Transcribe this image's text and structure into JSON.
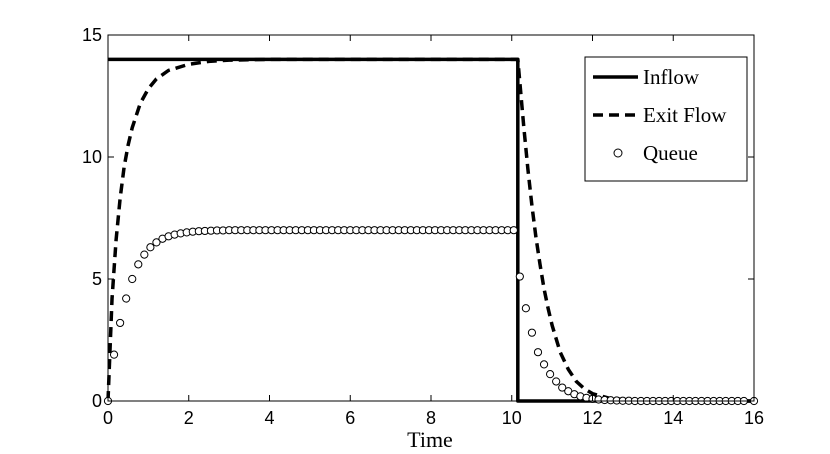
{
  "chart_data": {
    "type": "line",
    "title": "",
    "xlabel": "Time",
    "ylabel": "",
    "xlim": [
      0,
      16
    ],
    "ylim": [
      0,
      15
    ],
    "xticks": [
      0,
      2,
      4,
      6,
      8,
      10,
      12,
      14,
      16
    ],
    "yticks": [
      0,
      5,
      10,
      15
    ],
    "grid": false,
    "legend_position": "top-right",
    "series": [
      {
        "name": "Inflow",
        "style": "solid",
        "color": "#000000",
        "x": [
          0,
          10.15,
          10.15,
          16
        ],
        "y": [
          14,
          14,
          0,
          0
        ]
      },
      {
        "name": "Exit Flow",
        "style": "dashed",
        "color": "#000000",
        "x": [
          0,
          0.1,
          0.2,
          0.3,
          0.4,
          0.5,
          0.6,
          0.8,
          1.0,
          1.2,
          1.5,
          2.0,
          2.5,
          3.0,
          4.0,
          6.0,
          8.0,
          10.0,
          10.15,
          10.3,
          10.4,
          10.5,
          10.6,
          10.7,
          10.8,
          10.9,
          11.0,
          11.2,
          11.4,
          11.6,
          11.8,
          12.0,
          12.4,
          13.0,
          14.0,
          16.0
        ],
        "y": [
          0,
          4.2,
          6.6,
          8.3,
          9.6,
          10.5,
          11.2,
          12.2,
          12.8,
          13.2,
          13.55,
          13.8,
          13.92,
          13.97,
          14.0,
          14.0,
          14.0,
          14.0,
          14.0,
          11.2,
          9.5,
          8.0,
          6.7,
          5.6,
          4.6,
          3.8,
          3.1,
          2.0,
          1.3,
          0.8,
          0.5,
          0.3,
          0.12,
          0.03,
          0.0,
          0.0
        ]
      },
      {
        "name": "Queue",
        "style": "markers",
        "marker": "circle",
        "color": "#000000",
        "x": [
          0.0,
          0.15,
          0.3,
          0.45,
          0.6,
          0.75,
          0.9,
          1.05,
          1.2,
          1.35,
          1.5,
          1.65,
          1.8,
          1.95,
          2.1,
          2.25,
          2.4,
          2.55,
          2.7,
          2.85,
          3.0,
          3.15,
          3.3,
          3.45,
          3.6,
          3.75,
          3.9,
          4.05,
          4.2,
          4.35,
          4.5,
          4.65,
          4.8,
          4.95,
          5.1,
          5.25,
          5.4,
          5.55,
          5.7,
          5.85,
          6.0,
          6.15,
          6.3,
          6.45,
          6.6,
          6.75,
          6.9,
          7.05,
          7.2,
          7.35,
          7.5,
          7.65,
          7.8,
          7.95,
          8.1,
          8.25,
          8.4,
          8.55,
          8.7,
          8.85,
          9.0,
          9.15,
          9.3,
          9.45,
          9.6,
          9.75,
          9.9,
          10.05,
          10.2,
          10.35,
          10.5,
          10.65,
          10.8,
          10.95,
          11.1,
          11.25,
          11.4,
          11.55,
          11.7,
          11.85,
          12.0,
          12.15,
          12.3,
          12.45,
          12.6,
          12.75,
          12.9,
          13.05,
          13.2,
          13.35,
          13.5,
          13.65,
          13.8,
          13.95,
          14.1,
          14.25,
          14.4,
          14.55,
          14.7,
          14.85,
          15.0,
          15.15,
          15.3,
          15.45,
          15.6,
          15.75,
          16.0
        ],
        "y": [
          0.0,
          1.9,
          3.2,
          4.2,
          5.0,
          5.6,
          6.0,
          6.3,
          6.5,
          6.65,
          6.75,
          6.82,
          6.87,
          6.91,
          6.94,
          6.96,
          6.97,
          6.98,
          6.99,
          6.99,
          7.0,
          7.0,
          7.0,
          7.0,
          7.0,
          7.0,
          7.0,
          7.0,
          7.0,
          7.0,
          7.0,
          7.0,
          7.0,
          7.0,
          7.0,
          7.0,
          7.0,
          7.0,
          7.0,
          7.0,
          7.0,
          7.0,
          7.0,
          7.0,
          7.0,
          7.0,
          7.0,
          7.0,
          7.0,
          7.0,
          7.0,
          7.0,
          7.0,
          7.0,
          7.0,
          7.0,
          7.0,
          7.0,
          7.0,
          7.0,
          7.0,
          7.0,
          7.0,
          7.0,
          7.0,
          7.0,
          7.0,
          7.0,
          5.1,
          3.8,
          2.8,
          2.0,
          1.5,
          1.1,
          0.8,
          0.55,
          0.4,
          0.28,
          0.19,
          0.13,
          0.09,
          0.06,
          0.04,
          0.03,
          0.02,
          0.01,
          0.01,
          0.0,
          0.0,
          0.0,
          0.0,
          0.0,
          0.0,
          0.0,
          0.0,
          0.0,
          0.0,
          0.0,
          0.0,
          0.0,
          0.0,
          0.0,
          0.0,
          0.0,
          0.0,
          0.0,
          0.0
        ]
      }
    ]
  }
}
